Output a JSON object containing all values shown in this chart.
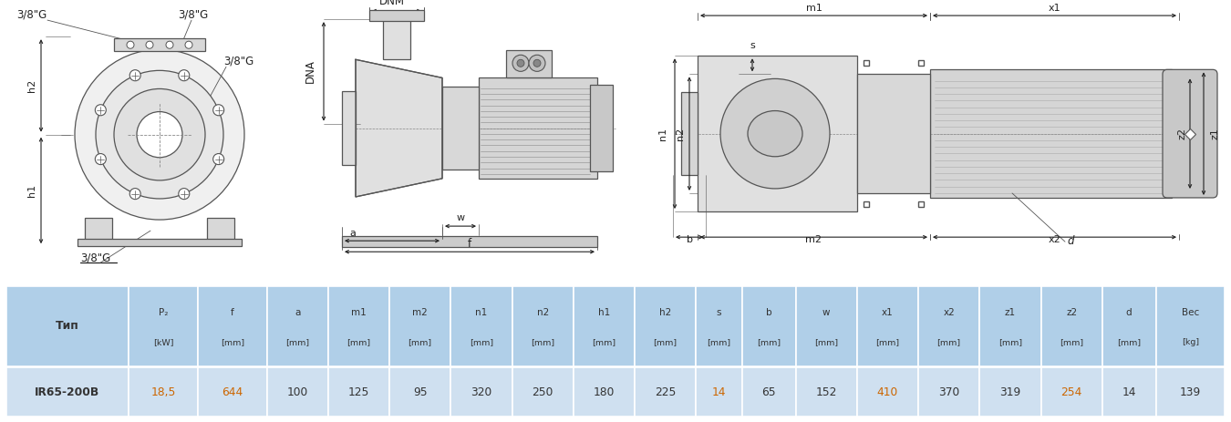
{
  "table_headers_line1": [
    "Тип",
    "P₂",
    "f",
    "a",
    "m1",
    "m2",
    "n1",
    "n2",
    "h1",
    "h2",
    "s",
    "b",
    "w",
    "x1",
    "x2",
    "z1",
    "z2",
    "d",
    "Вес"
  ],
  "table_headers_line2": [
    "",
    "[kW]",
    "[mm]",
    "[mm]",
    "[mm]",
    "[mm]",
    "[mm]",
    "[mm]",
    "[mm]",
    "[mm]",
    "[mm]",
    "[mm]",
    "[mm]",
    "[mm]",
    "[mm]",
    "[mm]",
    "[mm]",
    "[mm]",
    "[kg]"
  ],
  "table_row": [
    "IR65-200B",
    "18,5",
    "644",
    "100",
    "125",
    "95",
    "320",
    "250",
    "180",
    "225",
    "14",
    "65",
    "152",
    "410",
    "370",
    "319",
    "254",
    "14",
    "139"
  ],
  "header_bg": "#b0cfe8",
  "row_bg": "#cfe0f0",
  "alt_row_bg": "#ffffff",
  "header_text_color": "#333333",
  "row_text_color": "#333333",
  "orange_cols": [
    1,
    2,
    10,
    13,
    16
  ],
  "orange_color": "#cc6600",
  "row_bold_col0": true,
  "bg_color": "#ffffff",
  "gray": "#555555",
  "darkgray": "#222222",
  "lightgray": "#aaaaaa",
  "col_widths": [
    1.6,
    0.9,
    0.9,
    0.8,
    0.8,
    0.8,
    0.8,
    0.8,
    0.8,
    0.8,
    0.6,
    0.7,
    0.8,
    0.8,
    0.8,
    0.8,
    0.8,
    0.7,
    0.9
  ]
}
